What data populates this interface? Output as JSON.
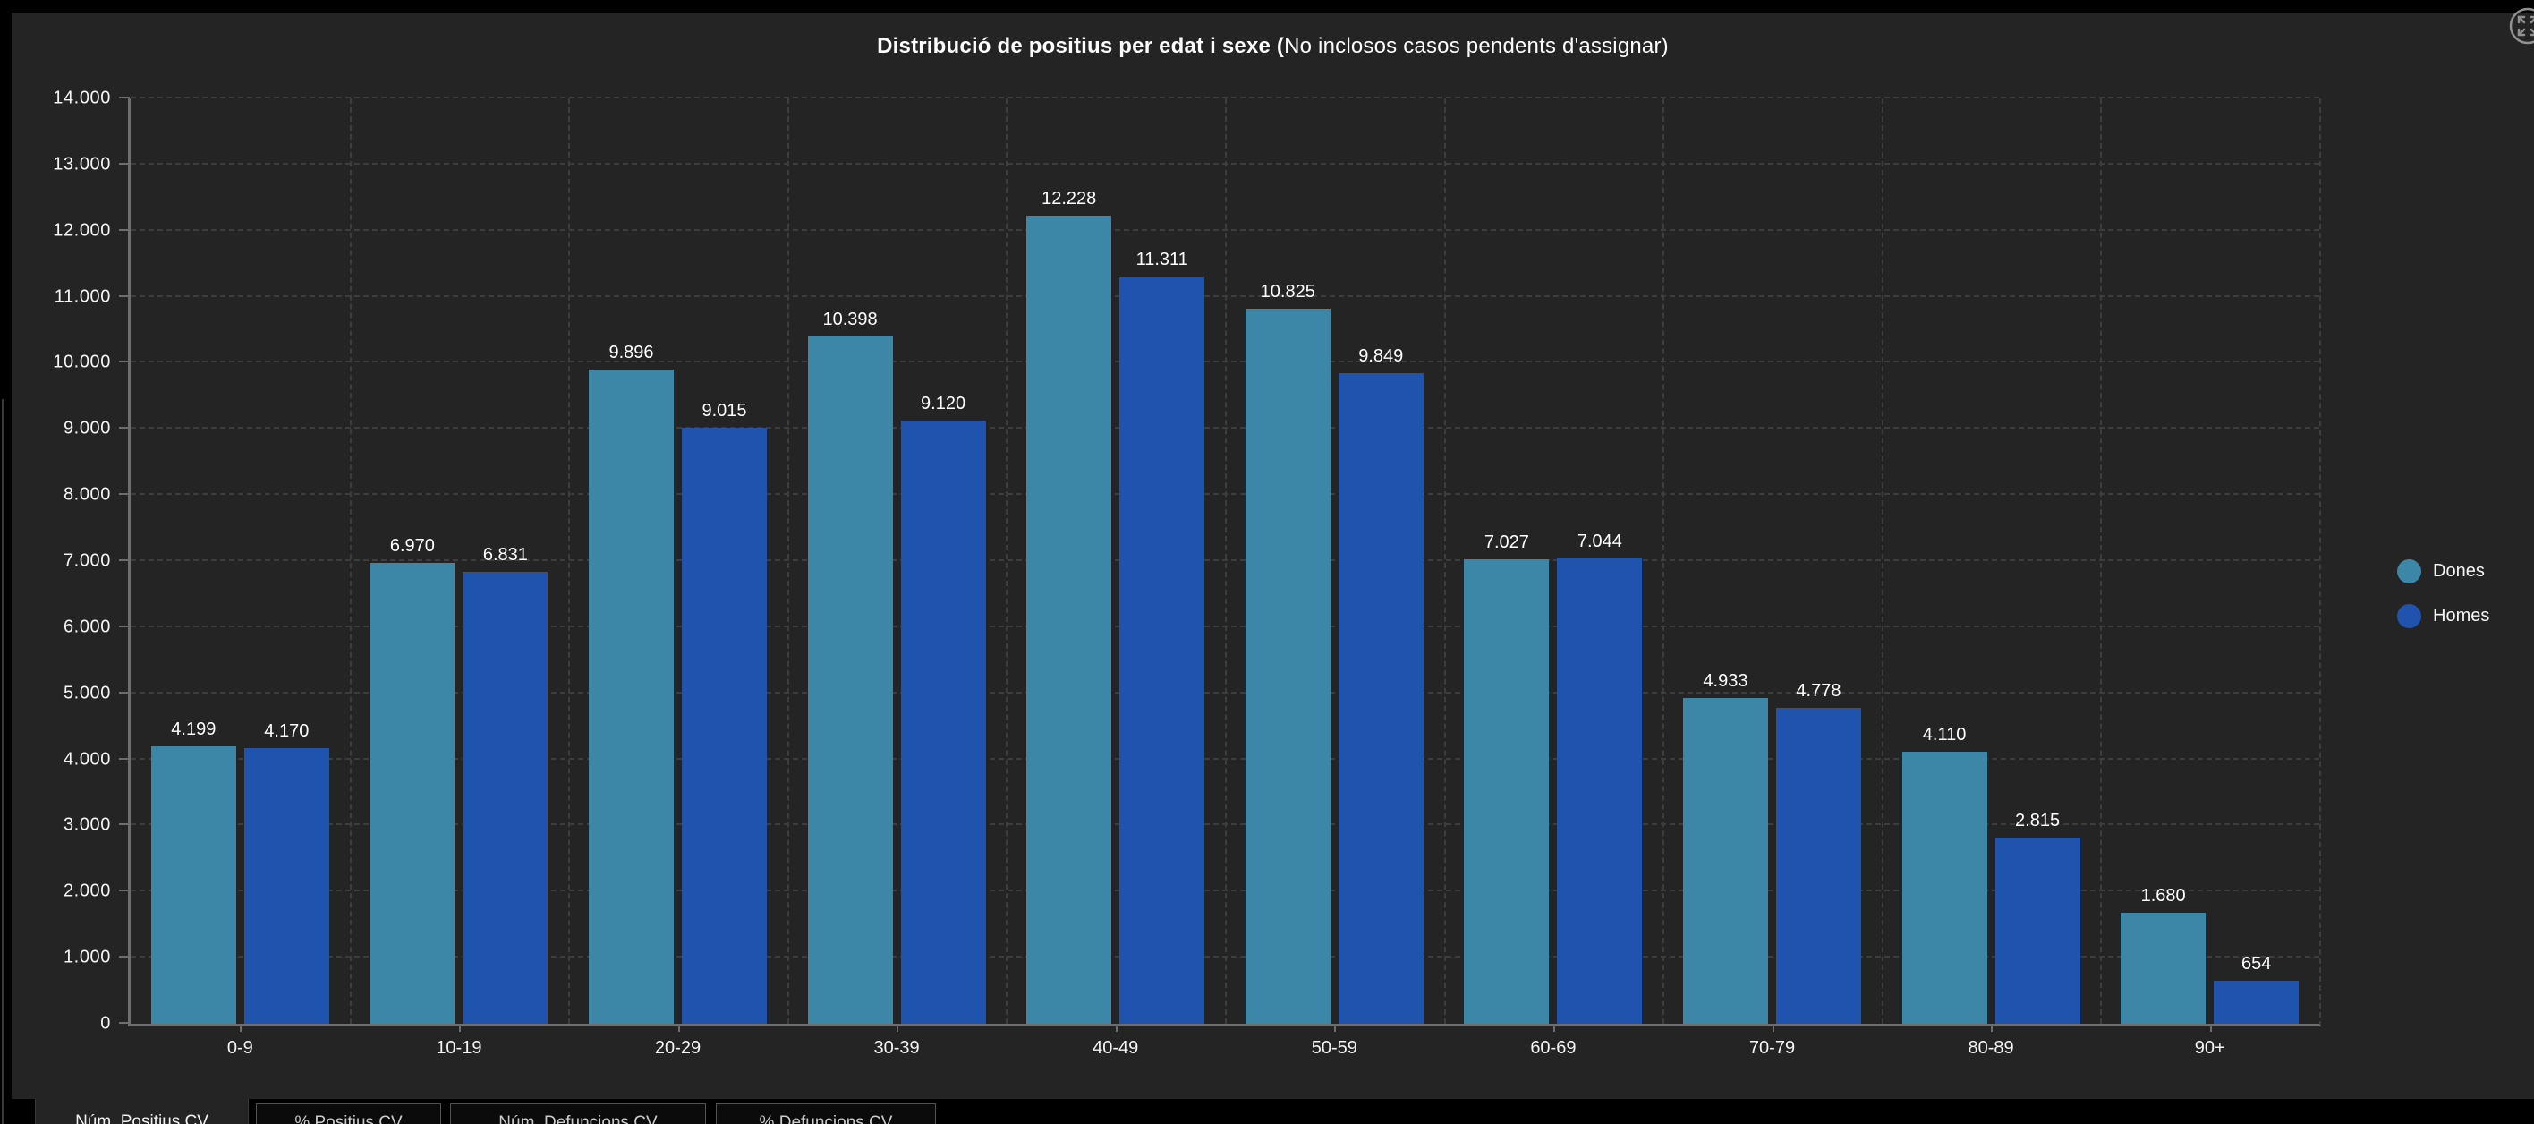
{
  "chart_data": {
    "type": "bar",
    "title_bold": "Distribució de positius per edat i sexe (",
    "title_regular": "No inclosos casos pendents d'assignar)",
    "categories": [
      "0-9",
      "10-19",
      "20-29",
      "30-39",
      "40-49",
      "50-59",
      "60-69",
      "70-79",
      "80-89",
      "90+"
    ],
    "series": [
      {
        "name": "Dones",
        "color": "#3C86A8",
        "values": [
          4199,
          6970,
          9896,
          10398,
          12228,
          10825,
          7027,
          4933,
          4110,
          1680
        ],
        "labels": [
          "4.199",
          "6.970",
          "9.896",
          "10.398",
          "12.228",
          "10.825",
          "7.027",
          "4.933",
          "4.110",
          "1.680"
        ]
      },
      {
        "name": "Homes",
        "color": "#1F53AE",
        "values": [
          4170,
          6831,
          9015,
          9120,
          11311,
          9849,
          7044,
          4778,
          2815,
          654
        ],
        "labels": [
          "4.170",
          "6.831",
          "9.015",
          "9.120",
          "11.311",
          "9.849",
          "7.044",
          "4.778",
          "2.815",
          "654"
        ]
      }
    ],
    "xlabel": "",
    "ylabel": "",
    "ylim": [
      0,
      14000
    ],
    "ytick_step": 1000,
    "ytick_labels": [
      "0",
      "1.000",
      "2.000",
      "3.000",
      "4.000",
      "5.000",
      "6.000",
      "7.000",
      "8.000",
      "9.000",
      "10.000",
      "11.000",
      "12.000",
      "13.000",
      "14.000"
    ],
    "grid": "dashed",
    "legend_position": "right",
    "legend": [
      "Dones",
      "Homes"
    ]
  },
  "tabs": [
    {
      "label": "Núm. Positius CV",
      "active": true
    },
    {
      "label": "% Positius CV",
      "active": false
    },
    {
      "label": "Núm. Defuncions CV",
      "active": false
    },
    {
      "label": "% Defuncions CV",
      "active": false
    }
  ],
  "icons": {
    "top_right": "expand-arrows-icon"
  },
  "colors": {
    "page_background": "#000000",
    "panel_background": "#242424",
    "grid_line": "#3d3d3d",
    "axis_line": "#6e6e6e",
    "text": "#f5f5f5",
    "dones": "#3C86A8",
    "homes": "#1F53AE"
  }
}
